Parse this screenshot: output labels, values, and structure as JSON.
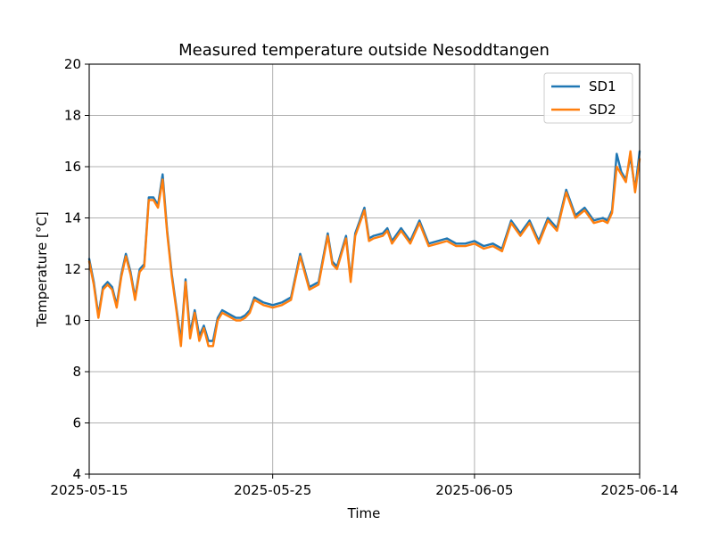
{
  "chart_data": {
    "type": "line",
    "title": "Measured temperature outside Nesoddtangen",
    "xlabel": "Time",
    "ylabel": "Temperature [°C]",
    "xlim": [
      "2025-05-15",
      "2025-06-14"
    ],
    "ylim": [
      4,
      20
    ],
    "x_ticks": [
      "2025-05-15",
      "2025-05-25",
      "2025-06-05",
      "2025-06-14"
    ],
    "y_ticks": [
      4,
      6,
      8,
      10,
      12,
      14,
      16,
      18,
      20
    ],
    "grid": true,
    "legend": "top-right",
    "series": [
      {
        "name": "SD1",
        "color": "#1f77b4",
        "x": [
          "2025-05-15T00:00",
          "2025-05-15T06:00",
          "2025-05-15T12:00",
          "2025-05-15T18:00",
          "2025-05-16T00:00",
          "2025-05-16T06:00",
          "2025-05-16T12:00",
          "2025-05-16T18:00",
          "2025-05-17T00:00",
          "2025-05-17T06:00",
          "2025-05-17T12:00",
          "2025-05-17T18:00",
          "2025-05-18T00:00",
          "2025-05-18T06:00",
          "2025-05-18T12:00",
          "2025-05-18T18:00",
          "2025-05-19T00:00",
          "2025-05-19T06:00",
          "2025-05-19T12:00",
          "2025-05-19T18:00",
          "2025-05-20T00:00",
          "2025-05-20T06:00",
          "2025-05-20T12:00",
          "2025-05-20T18:00",
          "2025-05-21T00:00",
          "2025-05-21T06:00",
          "2025-05-21T12:00",
          "2025-05-21T18:00",
          "2025-05-22T00:00",
          "2025-05-22T06:00",
          "2025-05-22T12:00",
          "2025-05-22T18:00",
          "2025-05-23T00:00",
          "2025-05-23T06:00",
          "2025-05-23T12:00",
          "2025-05-23T18:00",
          "2025-05-24T00:00",
          "2025-05-24T12:00",
          "2025-05-25T00:00",
          "2025-05-25T12:00",
          "2025-05-26T00:00",
          "2025-05-26T12:00",
          "2025-05-27T00:00",
          "2025-05-27T12:00",
          "2025-05-28T00:00",
          "2025-05-28T06:00",
          "2025-05-28T12:00",
          "2025-05-29T00:00",
          "2025-05-29T06:00",
          "2025-05-29T12:00",
          "2025-05-30T00:00",
          "2025-05-30T06:00",
          "2025-05-30T12:00",
          "2025-05-31T00:00",
          "2025-05-31T06:00",
          "2025-05-31T12:00",
          "2025-06-01T00:00",
          "2025-06-01T12:00",
          "2025-06-02T00:00",
          "2025-06-02T12:00",
          "2025-06-03T00:00",
          "2025-06-03T12:00",
          "2025-06-04T00:00",
          "2025-06-04T12:00",
          "2025-06-05T00:00",
          "2025-06-05T12:00",
          "2025-06-06T00:00",
          "2025-06-06T12:00",
          "2025-06-07T00:00",
          "2025-06-07T12:00",
          "2025-06-08T00:00",
          "2025-06-08T12:00",
          "2025-06-09T00:00",
          "2025-06-09T12:00",
          "2025-06-10T00:00",
          "2025-06-10T12:00",
          "2025-06-11T00:00",
          "2025-06-11T12:00",
          "2025-06-12T00:00",
          "2025-06-12T06:00",
          "2025-06-12T12:00",
          "2025-06-12T18:00",
          "2025-06-13T00:00",
          "2025-06-13T06:00",
          "2025-06-13T12:00",
          "2025-06-13T18:00",
          "2025-06-14T00:00"
        ],
        "y": [
          12.4,
          11.5,
          10.2,
          11.3,
          11.5,
          11.3,
          10.6,
          11.8,
          12.6,
          11.9,
          10.9,
          12.0,
          12.2,
          14.8,
          14.8,
          14.5,
          15.7,
          13.5,
          11.8,
          10.5,
          9.2,
          11.6,
          9.5,
          10.4,
          9.4,
          9.8,
          9.2,
          9.2,
          10.1,
          10.4,
          10.3,
          10.2,
          10.1,
          10.1,
          10.2,
          10.4,
          10.9,
          10.7,
          10.6,
          10.7,
          10.9,
          12.6,
          11.3,
          11.5,
          13.4,
          12.3,
          12.1,
          13.3,
          11.6,
          13.4,
          14.4,
          13.2,
          13.3,
          13.4,
          13.6,
          13.1,
          13.6,
          13.1,
          13.9,
          13.0,
          13.1,
          13.2,
          13.0,
          13.0,
          13.1,
          12.9,
          13.0,
          12.8,
          13.9,
          13.4,
          13.9,
          13.1,
          14.0,
          13.6,
          15.1,
          14.1,
          14.4,
          13.9,
          14.0,
          13.9,
          14.3,
          16.5,
          15.8,
          15.5,
          16.4,
          15.1,
          16.6
        ]
      },
      {
        "name": "SD2",
        "color": "#ff7f0e",
        "x": [
          "2025-05-15T00:00",
          "2025-05-15T06:00",
          "2025-05-15T12:00",
          "2025-05-15T18:00",
          "2025-05-16T00:00",
          "2025-05-16T06:00",
          "2025-05-16T12:00",
          "2025-05-16T18:00",
          "2025-05-17T00:00",
          "2025-05-17T06:00",
          "2025-05-17T12:00",
          "2025-05-17T18:00",
          "2025-05-18T00:00",
          "2025-05-18T06:00",
          "2025-05-18T12:00",
          "2025-05-18T18:00",
          "2025-05-19T00:00",
          "2025-05-19T06:00",
          "2025-05-19T12:00",
          "2025-05-19T18:00",
          "2025-05-20T00:00",
          "2025-05-20T06:00",
          "2025-05-20T12:00",
          "2025-05-20T18:00",
          "2025-05-21T00:00",
          "2025-05-21T06:00",
          "2025-05-21T12:00",
          "2025-05-21T18:00",
          "2025-05-22T00:00",
          "2025-05-22T06:00",
          "2025-05-22T12:00",
          "2025-05-22T18:00",
          "2025-05-23T00:00",
          "2025-05-23T06:00",
          "2025-05-23T12:00",
          "2025-05-23T18:00",
          "2025-05-24T00:00",
          "2025-05-24T12:00",
          "2025-05-25T00:00",
          "2025-05-25T12:00",
          "2025-05-26T00:00",
          "2025-05-26T12:00",
          "2025-05-27T00:00",
          "2025-05-27T12:00",
          "2025-05-28T00:00",
          "2025-05-28T06:00",
          "2025-05-28T12:00",
          "2025-05-29T00:00",
          "2025-05-29T06:00",
          "2025-05-29T12:00",
          "2025-05-30T00:00",
          "2025-05-30T06:00",
          "2025-05-30T12:00",
          "2025-05-31T00:00",
          "2025-05-31T06:00",
          "2025-05-31T12:00",
          "2025-06-01T00:00",
          "2025-06-01T12:00",
          "2025-06-02T00:00",
          "2025-06-02T12:00",
          "2025-06-03T00:00",
          "2025-06-03T12:00",
          "2025-06-04T00:00",
          "2025-06-04T12:00",
          "2025-06-05T00:00",
          "2025-06-05T12:00",
          "2025-06-06T00:00",
          "2025-06-06T12:00",
          "2025-06-07T00:00",
          "2025-06-07T12:00",
          "2025-06-08T00:00",
          "2025-06-08T12:00",
          "2025-06-09T00:00",
          "2025-06-09T12:00",
          "2025-06-10T00:00",
          "2025-06-10T12:00",
          "2025-06-11T00:00",
          "2025-06-11T12:00",
          "2025-06-12T00:00",
          "2025-06-12T06:00",
          "2025-06-12T12:00",
          "2025-06-12T18:00",
          "2025-06-13T00:00",
          "2025-06-13T06:00",
          "2025-06-13T12:00",
          "2025-06-13T18:00",
          "2025-06-14T00:00"
        ],
        "y": [
          12.3,
          11.4,
          10.1,
          11.2,
          11.4,
          11.2,
          10.5,
          11.7,
          12.5,
          11.8,
          10.8,
          11.9,
          12.1,
          14.7,
          14.7,
          14.4,
          15.5,
          13.4,
          11.7,
          10.4,
          9.0,
          11.5,
          9.3,
          10.3,
          9.2,
          9.7,
          9.0,
          9.0,
          10.0,
          10.3,
          10.2,
          10.1,
          10.0,
          10.0,
          10.1,
          10.3,
          10.8,
          10.6,
          10.5,
          10.6,
          10.8,
          12.5,
          11.2,
          11.4,
          13.3,
          12.2,
          12.0,
          13.2,
          11.5,
          13.3,
          14.3,
          13.1,
          13.2,
          13.3,
          13.5,
          13.0,
          13.5,
          13.0,
          13.8,
          12.9,
          13.0,
          13.1,
          12.9,
          12.9,
          13.0,
          12.8,
          12.9,
          12.7,
          13.8,
          13.3,
          13.8,
          13.0,
          13.9,
          13.5,
          15.0,
          14.0,
          14.3,
          13.8,
          13.9,
          13.8,
          14.2,
          16.0,
          15.7,
          15.4,
          16.6,
          15.0,
          16.3
        ]
      }
    ]
  }
}
